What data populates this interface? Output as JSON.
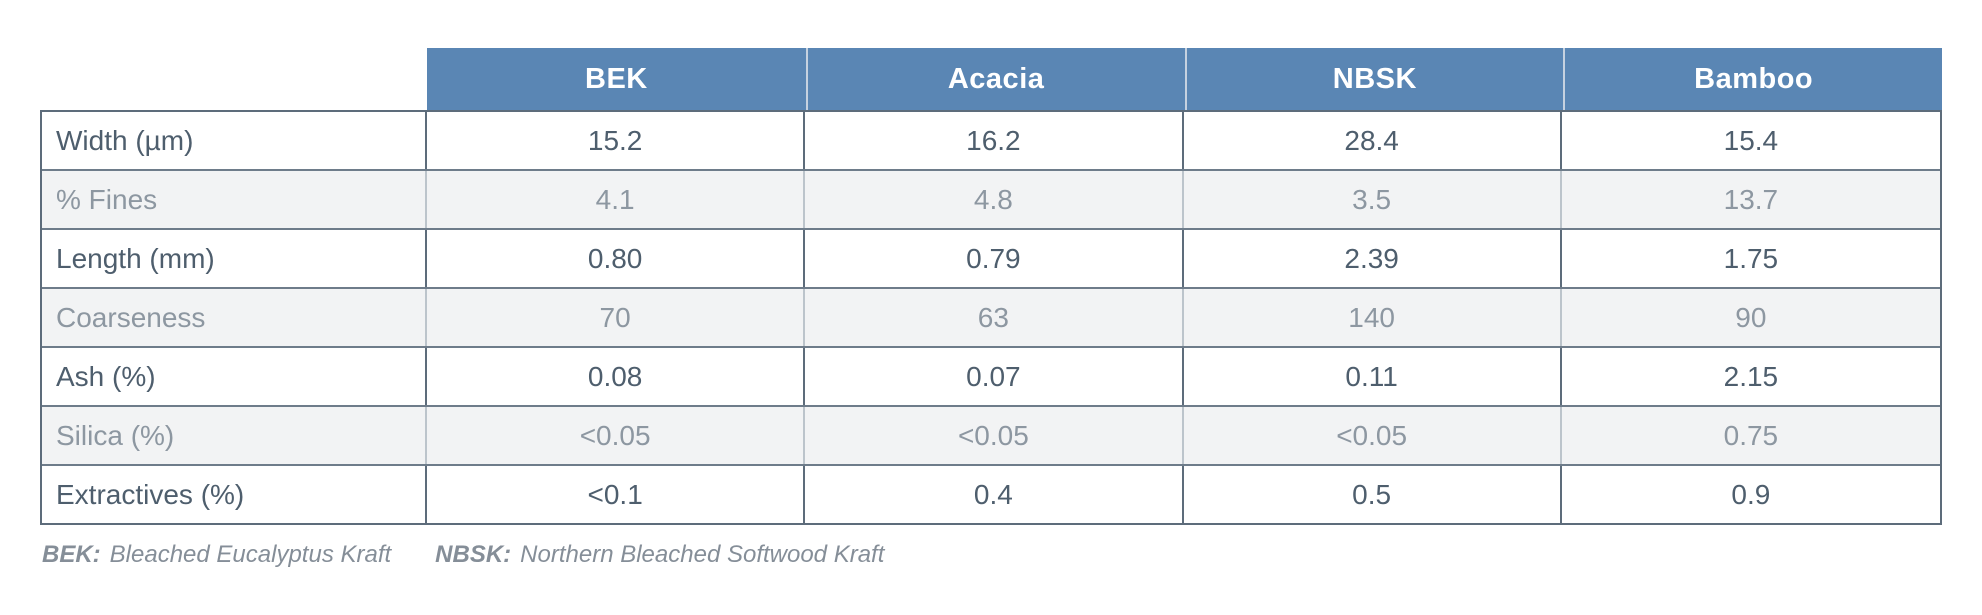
{
  "figure": {
    "header_columns": [
      "BEK",
      "Acacia",
      "NBSK",
      "Bamboo"
    ],
    "rows": [
      {
        "label": "Width (µm)",
        "values": [
          "15.2",
          "16.2",
          "28.4",
          "15.4"
        ],
        "style": "emphasis"
      },
      {
        "label": "% Fines",
        "values": [
          "4.1",
          "4.8",
          "3.5",
          "13.7"
        ],
        "style": "soft"
      },
      {
        "label": "Length (mm)",
        "values": [
          "0.80",
          "0.79",
          "2.39",
          "1.75"
        ],
        "style": "emphasis"
      },
      {
        "label": "Coarseness",
        "values": [
          "70",
          "63",
          "140",
          "90"
        ],
        "style": "soft"
      },
      {
        "label": "Ash (%)",
        "values": [
          "0.08",
          "0.07",
          "0.11",
          "2.15"
        ],
        "style": "emphasis"
      },
      {
        "label": "Silica (%)",
        "values": [
          "<0.05",
          "<0.05",
          "<0.05",
          "0.75"
        ],
        "style": "soft"
      },
      {
        "label": "Extractives (%)",
        "values": [
          "<0.1",
          "0.4",
          "0.5",
          "0.9"
        ],
        "style": "emphasis"
      }
    ],
    "footnote": {
      "entries": [
        {
          "term": "BEK:",
          "definition": "Bleached Eucalyptus Kraft"
        },
        {
          "term": "NBSK:",
          "definition": "Northern Bleached Softwood Kraft"
        }
      ]
    },
    "colors": {
      "header_bg": "#5a86b4",
      "header_text": "#ffffff",
      "emphasis_text": "#4e5e6d",
      "soft_text": "#8d97a1",
      "soft_row_bg": "#f2f3f4",
      "border_dark": "#5d6c7b",
      "border_light": "#bcc4cb",
      "footnote_text": "#858e98"
    }
  },
  "chart_data": {
    "type": "table",
    "columns": [
      "",
      "BEK",
      "Acacia",
      "NBSK",
      "Bamboo"
    ],
    "rows": [
      [
        "Width (µm)",
        "15.2",
        "16.2",
        "28.4",
        "15.4"
      ],
      [
        "% Fines",
        "4.1",
        "4.8",
        "3.5",
        "13.7"
      ],
      [
        "Length (mm)",
        "0.80",
        "0.79",
        "2.39",
        "1.75"
      ],
      [
        "Coarseness",
        "70",
        "63",
        "140",
        "90"
      ],
      [
        "Ash (%)",
        "0.08",
        "0.07",
        "0.11",
        "2.15"
      ],
      [
        "Silica (%)",
        "<0.05",
        "<0.05",
        "<0.05",
        "0.75"
      ],
      [
        "Extractives (%)",
        "<0.1",
        "0.4",
        "0.5",
        "0.9"
      ]
    ],
    "notes": "BEK: Bleached Eucalyptus Kraft; NBSK: Northern Bleached Softwood Kraft"
  }
}
